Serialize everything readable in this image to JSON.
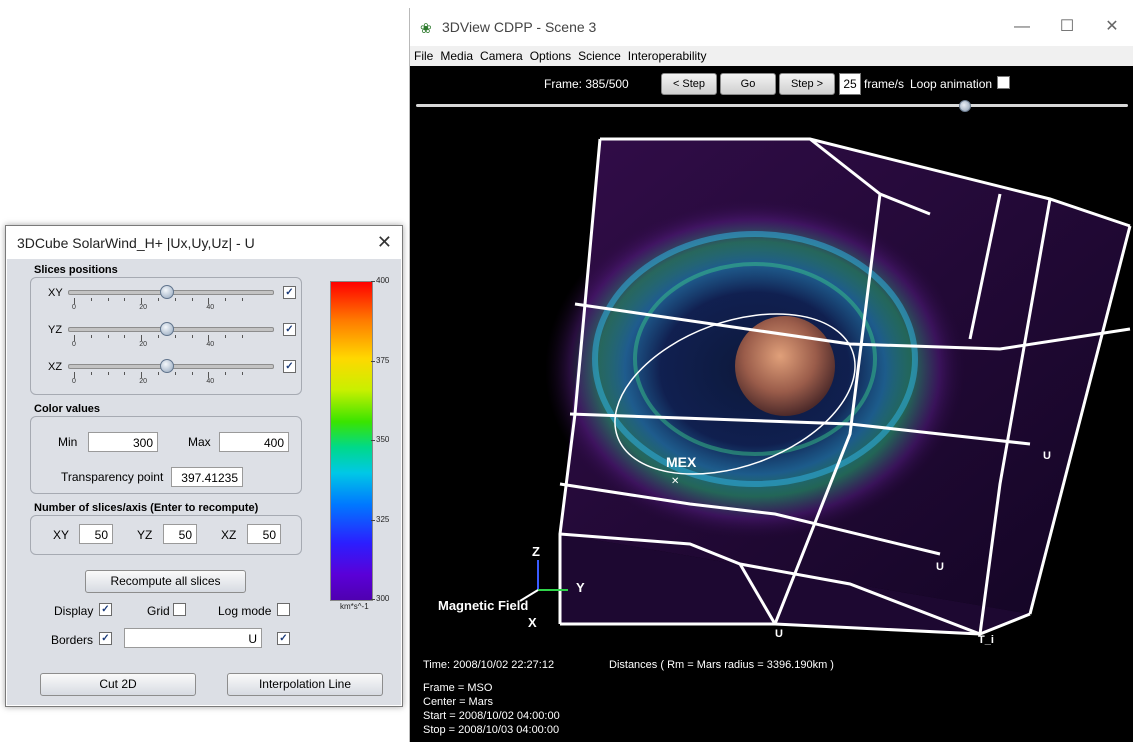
{
  "view3d": {
    "title": "3DView CDPP - Scene 3",
    "menu": [
      "File",
      "Media",
      "Camera",
      "Options",
      "Science",
      "Interoperability"
    ],
    "toolbar": {
      "frame": "Frame: 385/500",
      "step_back": "< Step",
      "go": "Go",
      "step_fwd": "Step >",
      "fps_value": "25",
      "fps_label": "frame/s",
      "loop_label": "Loop animation"
    },
    "timeline_progress": 0.77,
    "overlay": {
      "mex": "MEX",
      "axis_z": "Z",
      "axis_y": "Y",
      "axis_x": "X",
      "magnetic_field": "Magnetic Field",
      "u_right": "U",
      "u_mid": "U",
      "u_bottom": "U",
      "t_i": "T_i",
      "time": "Time: 2008/10/02 22:27:12",
      "distances": "Distances ( Rm = Mars radius = 3396.190km )",
      "frame_ref": "Frame = MSO",
      "center": "Center = Mars",
      "start": "Start = 2008/10/02 04:00:00",
      "stop": "Stop = 2008/10/03 04:00:00"
    }
  },
  "cube": {
    "title": "3DCube SolarWind_H+ |Ux,Uy,Uz| - U",
    "slices_title": "Slices positions",
    "slices": [
      {
        "label": "XY",
        "value": 24,
        "checked": true
      },
      {
        "label": "YZ",
        "value": 24,
        "checked": true
      },
      {
        "label": "XZ",
        "value": 24,
        "checked": true
      }
    ],
    "tick_labels": [
      "0",
      "20",
      "40"
    ],
    "color_title": "Color values",
    "min_label": "Min",
    "min_value": "300",
    "max_label": "Max",
    "max_value": "400",
    "transparency_label": "Transparency point",
    "transparency_value": "397.41235",
    "nslices_title": "Number of slices/axis (Enter to recompute)",
    "nslices": [
      {
        "label": "XY",
        "value": "50"
      },
      {
        "label": "YZ",
        "value": "50"
      },
      {
        "label": "XZ",
        "value": "50"
      }
    ],
    "recompute": "Recompute all slices",
    "display_label": "Display",
    "grid_label": "Grid",
    "logmode_label": "Log mode",
    "borders_label": "Borders",
    "borders_value": "U",
    "cut2d": "Cut 2D",
    "interp": "Interpolation Line",
    "colorbar_ticks": [
      "400",
      "375",
      "350",
      "325",
      "300"
    ],
    "colorbar_unit": "km*s^-1"
  },
  "colors": {
    "cube_panel": "#dcdfe5",
    "background_3d": "#000000"
  }
}
